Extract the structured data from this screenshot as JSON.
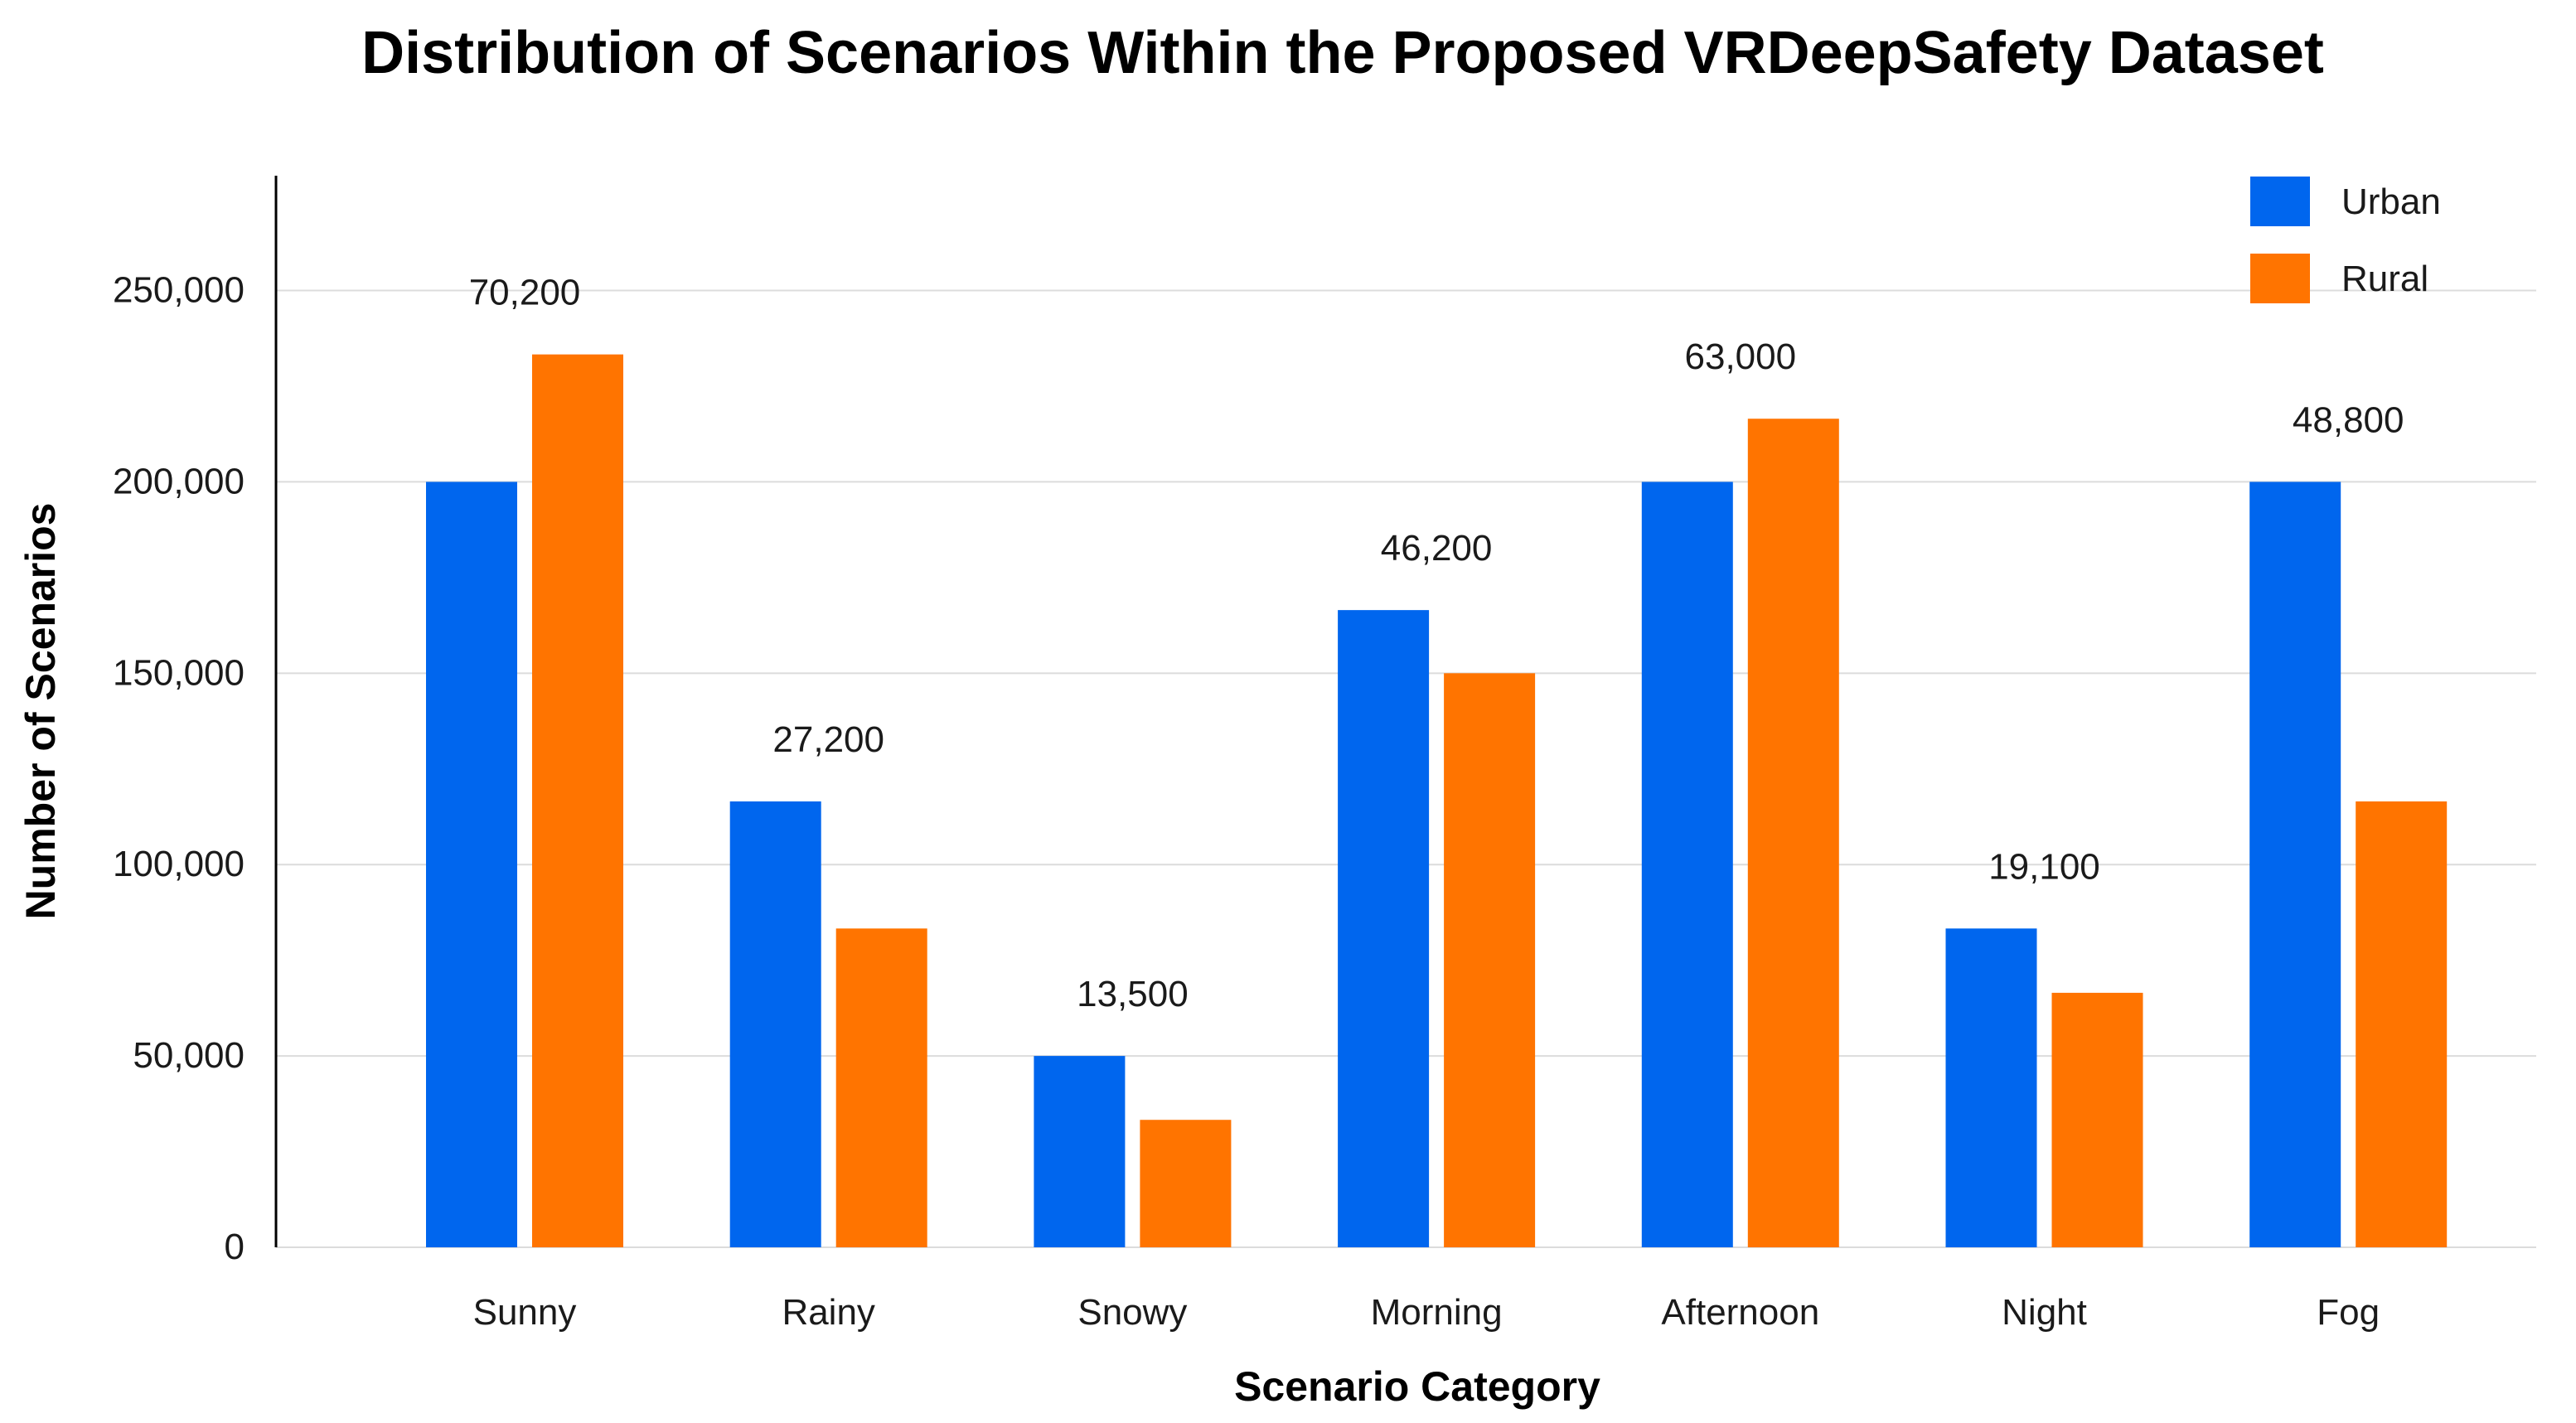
{
  "chart_data": {
    "type": "bar",
    "title": "Distribution of Scenarios Within the Proposed VRDeepSafety Dataset",
    "xlabel": "Scenario Category",
    "ylabel": "Number of Scenarios",
    "categories": [
      "Sunny",
      "Rainy",
      "Snowy",
      "Morning",
      "Afternoon",
      "Night",
      "Fog"
    ],
    "series": [
      {
        "name": "Urban",
        "color": "#0066ee",
        "values": [
          200000,
          116500,
          50000,
          166500,
          200000,
          83300,
          200000
        ]
      },
      {
        "name": "Rural",
        "color": "#ff7400",
        "values": [
          233300,
          83300,
          33300,
          150000,
          216500,
          66500,
          116500
        ]
      }
    ],
    "annotations": [
      "70,200",
      "27,200",
      "13,500",
      "46,200",
      "63,000",
      "19,100",
      "48,800"
    ],
    "yticks": [
      0,
      50000,
      100000,
      150000,
      200000,
      250000
    ],
    "ytick_labels": [
      "0",
      "50,000",
      "100,000",
      "150,000",
      "200,000",
      "250,000"
    ],
    "ylim": [
      0,
      280000
    ],
    "grid": true,
    "legend_position": "top-right"
  }
}
